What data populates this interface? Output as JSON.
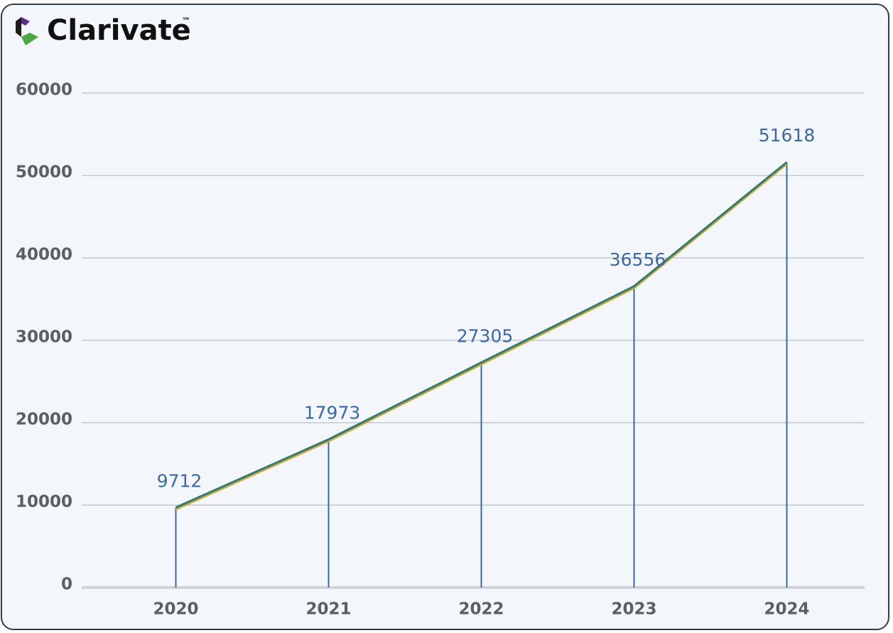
{
  "brand": "Clarivate",
  "trademark": "™",
  "chart_data": {
    "type": "line",
    "categories": [
      "2020",
      "2021",
      "2022",
      "2023",
      "2024"
    ],
    "values": [
      9712,
      17973,
      27305,
      36556,
      51618
    ],
    "color": "#2c7f6c",
    "shadow_color": "#d9a23b",
    "drop_line_color": "#3b68a6",
    "ylim": [
      0,
      60000
    ],
    "yticks": [
      0,
      10000,
      20000,
      30000,
      40000,
      50000,
      60000
    ],
    "grid": true
  }
}
